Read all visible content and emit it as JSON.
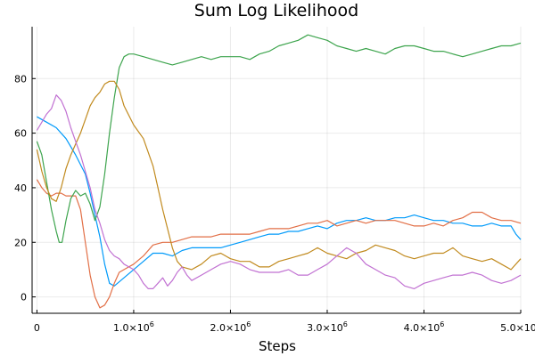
{
  "chart_data": {
    "type": "line",
    "title": "Sum Log Likelihood",
    "xlabel": "Steps",
    "ylabel": "",
    "xlim": [
      -50000,
      5000000
    ],
    "ylim": [
      -6,
      99
    ],
    "grid": true,
    "legend": "none",
    "x_ticks": [
      {
        "value": 0,
        "base": "0",
        "exp": ""
      },
      {
        "value": 1000000,
        "base": "1.0×10",
        "exp": "6"
      },
      {
        "value": 2000000,
        "base": "2.0×10",
        "exp": "6"
      },
      {
        "value": 3000000,
        "base": "3.0×10",
        "exp": "6"
      },
      {
        "value": 4000000,
        "base": "4.0×10",
        "exp": "6"
      },
      {
        "value": 5000000,
        "base": "5.0×10",
        "exp": "6"
      }
    ],
    "y_ticks": [
      0,
      20,
      40,
      60,
      80
    ],
    "series": [
      {
        "color": "#009AFA",
        "x": [
          0,
          100000,
          200000,
          300000,
          400000,
          500000,
          550000,
          600000,
          650000,
          700000,
          750000,
          800000,
          900000,
          1000000,
          1100000,
          1200000,
          1300000,
          1400000,
          1500000,
          1600000,
          1700000,
          1800000,
          1900000,
          2000000,
          2100000,
          2200000,
          2300000,
          2400000,
          2500000,
          2600000,
          2700000,
          2800000,
          2900000,
          3000000,
          3100000,
          3200000,
          3300000,
          3400000,
          3500000,
          3600000,
          3700000,
          3800000,
          3900000,
          4000000,
          4100000,
          4200000,
          4300000,
          4400000,
          4500000,
          4600000,
          4700000,
          4800000,
          4900000,
          4950000,
          5000000
        ],
        "y": [
          66,
          64,
          62,
          58,
          52,
          45,
          38,
          30,
          22,
          12,
          5,
          4,
          7,
          10,
          13,
          16,
          16,
          15,
          17,
          18,
          18,
          18,
          18,
          19,
          20,
          21,
          22,
          23,
          23,
          24,
          24,
          25,
          26,
          25,
          27,
          28,
          28,
          29,
          28,
          28,
          29,
          29,
          30,
          29,
          28,
          28,
          27,
          27,
          26,
          26,
          27,
          26,
          26,
          23,
          21
        ]
      },
      {
        "color": "#E26F46",
        "x": [
          0,
          50000,
          100000,
          150000,
          200000,
          250000,
          300000,
          350000,
          400000,
          450000,
          500000,
          550000,
          600000,
          650000,
          700000,
          750000,
          800000,
          850000,
          900000,
          1000000,
          1100000,
          1200000,
          1300000,
          1400000,
          1500000,
          1600000,
          1700000,
          1800000,
          1900000,
          2000000,
          2100000,
          2200000,
          2300000,
          2400000,
          2500000,
          2600000,
          2700000,
          2800000,
          2900000,
          3000000,
          3100000,
          3200000,
          3300000,
          3400000,
          3500000,
          3600000,
          3700000,
          3800000,
          3900000,
          4000000,
          4100000,
          4200000,
          4300000,
          4400000,
          4500000,
          4600000,
          4700000,
          4800000,
          4900000,
          5000000
        ],
        "y": [
          43,
          40,
          38,
          37,
          38,
          38,
          37,
          37,
          37,
          32,
          20,
          8,
          0,
          -4,
          -3,
          0,
          5,
          9,
          10,
          12,
          15,
          19,
          20,
          20,
          21,
          22,
          22,
          22,
          23,
          23,
          23,
          23,
          24,
          25,
          25,
          25,
          26,
          27,
          27,
          28,
          26,
          27,
          28,
          27,
          28,
          28,
          28,
          27,
          26,
          26,
          27,
          26,
          28,
          29,
          31,
          31,
          29,
          28,
          28,
          27
        ]
      },
      {
        "color": "#3DA44D",
        "x": [
          0,
          50000,
          100000,
          150000,
          200000,
          230000,
          260000,
          300000,
          350000,
          400000,
          450000,
          500000,
          550000,
          600000,
          650000,
          700000,
          750000,
          800000,
          850000,
          900000,
          950000,
          1000000,
          1100000,
          1200000,
          1300000,
          1400000,
          1500000,
          1600000,
          1700000,
          1800000,
          1900000,
          2000000,
          2100000,
          2200000,
          2300000,
          2400000,
          2500000,
          2600000,
          2700000,
          2800000,
          2900000,
          3000000,
          3100000,
          3200000,
          3300000,
          3400000,
          3500000,
          3600000,
          3700000,
          3800000,
          3900000,
          4000000,
          4100000,
          4200000,
          4300000,
          4400000,
          4500000,
          4600000,
          4700000,
          4800000,
          4900000,
          5000000
        ],
        "y": [
          57,
          52,
          42,
          32,
          24,
          20,
          20,
          28,
          36,
          39,
          37,
          38,
          34,
          28,
          33,
          45,
          60,
          73,
          84,
          88,
          89,
          89,
          88,
          87,
          86,
          85,
          86,
          87,
          88,
          87,
          88,
          88,
          88,
          87,
          89,
          90,
          92,
          93,
          94,
          96,
          95,
          94,
          92,
          91,
          90,
          91,
          90,
          89,
          91,
          92,
          92,
          91,
          90,
          90,
          89,
          88,
          89,
          90,
          91,
          92,
          92,
          93
        ]
      },
      {
        "color": "#C18A1E",
        "x": [
          0,
          50000,
          100000,
          150000,
          200000,
          250000,
          300000,
          350000,
          400000,
          450000,
          500000,
          550000,
          600000,
          650000,
          700000,
          750000,
          800000,
          850000,
          900000,
          1000000,
          1100000,
          1200000,
          1250000,
          1300000,
          1350000,
          1400000,
          1450000,
          1500000,
          1600000,
          1700000,
          1800000,
          1900000,
          2000000,
          2100000,
          2200000,
          2300000,
          2400000,
          2500000,
          2600000,
          2700000,
          2800000,
          2900000,
          3000000,
          3100000,
          3200000,
          3300000,
          3400000,
          3500000,
          3600000,
          3700000,
          3800000,
          3900000,
          4000000,
          4100000,
          4200000,
          4300000,
          4400000,
          4500000,
          4600000,
          4700000,
          4800000,
          4900000,
          5000000
        ],
        "y": [
          54,
          46,
          40,
          36,
          35,
          40,
          47,
          52,
          56,
          60,
          65,
          70,
          73,
          75,
          78,
          79,
          79,
          76,
          70,
          63,
          58,
          48,
          40,
          32,
          25,
          18,
          13,
          11,
          10,
          12,
          15,
          16,
          14,
          13,
          13,
          11,
          11,
          13,
          14,
          15,
          16,
          18,
          16,
          15,
          14,
          16,
          17,
          19,
          18,
          17,
          15,
          14,
          15,
          16,
          16,
          18,
          15,
          14,
          13,
          14,
          12,
          10,
          14
        ]
      },
      {
        "color": "#C171D2",
        "x": [
          0,
          50000,
          100000,
          150000,
          200000,
          250000,
          300000,
          350000,
          400000,
          450000,
          500000,
          550000,
          600000,
          650000,
          700000,
          750000,
          800000,
          850000,
          900000,
          1000000,
          1050000,
          1100000,
          1150000,
          1200000,
          1250000,
          1300000,
          1350000,
          1400000,
          1450000,
          1500000,
          1550000,
          1600000,
          1700000,
          1800000,
          1900000,
          2000000,
          2100000,
          2200000,
          2300000,
          2400000,
          2500000,
          2600000,
          2700000,
          2800000,
          2900000,
          3000000,
          3100000,
          3200000,
          3300000,
          3400000,
          3500000,
          3600000,
          3700000,
          3800000,
          3900000,
          4000000,
          4100000,
          4200000,
          4300000,
          4400000,
          4500000,
          4600000,
          4700000,
          4800000,
          4900000,
          5000000
        ],
        "y": [
          61,
          64,
          67,
          69,
          74,
          72,
          68,
          62,
          57,
          52,
          46,
          40,
          32,
          27,
          21,
          17,
          15,
          14,
          12,
          10,
          8,
          5,
          3,
          3,
          5,
          7,
          4,
          6,
          9,
          11,
          8,
          6,
          8,
          10,
          12,
          13,
          12,
          10,
          9,
          9,
          9,
          10,
          8,
          8,
          10,
          12,
          15,
          18,
          16,
          12,
          10,
          8,
          7,
          4,
          3,
          5,
          6,
          7,
          8,
          8,
          9,
          8,
          6,
          5,
          6,
          8
        ]
      }
    ]
  }
}
